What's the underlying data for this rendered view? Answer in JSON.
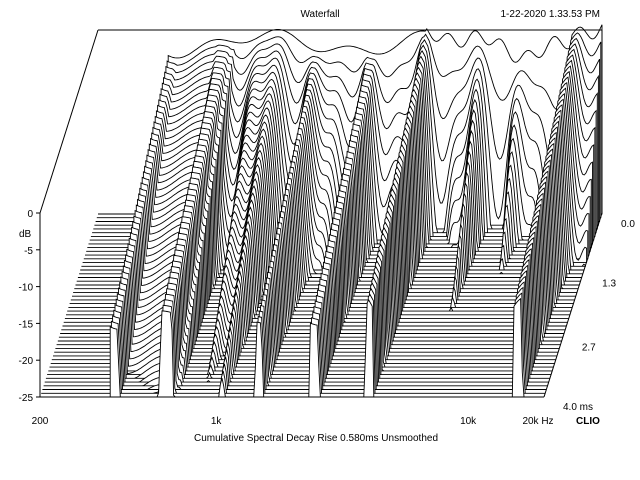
{
  "chart_data": {
    "type": "waterfall",
    "title": "Waterfall",
    "timestamp": "1-22-2020 1.33.53 PM",
    "subtitle": "Cumulative Spectral Decay   Rise 0.580ms   Unsmoothed",
    "brand": "CLIO",
    "x_axis": {
      "unit": "Hz",
      "scale": "log",
      "range": [
        200,
        20000
      ],
      "ticks": [
        {
          "value": 200,
          "label": "200"
        },
        {
          "value": 1000,
          "label": "1k"
        },
        {
          "value": 10000,
          "label": "10k"
        },
        {
          "value": 20000,
          "label": "20k Hz"
        }
      ]
    },
    "y_axis": {
      "unit": "dB",
      "label": "dB",
      "range": [
        -25,
        0
      ],
      "ticks": [
        {
          "value": 0,
          "label": "0"
        },
        {
          "value": -5,
          "label": "-5"
        },
        {
          "value": -10,
          "label": "-10"
        },
        {
          "value": -15,
          "label": "-15"
        },
        {
          "value": -20,
          "label": "-20"
        },
        {
          "value": -25,
          "label": "-25"
        }
      ]
    },
    "time_axis": {
      "unit": "ms",
      "range": [
        0.0,
        4.0
      ],
      "ticks": [
        {
          "value": 0.0,
          "label": "0.0"
        },
        {
          "value": 1.3,
          "label": "1.3"
        },
        {
          "value": 2.7,
          "label": "2.7"
        },
        {
          "value": 4.0,
          "label": "4.0 ms"
        }
      ]
    },
    "slices": 50,
    "line_color": "#000000",
    "background": "#ffffff"
  }
}
